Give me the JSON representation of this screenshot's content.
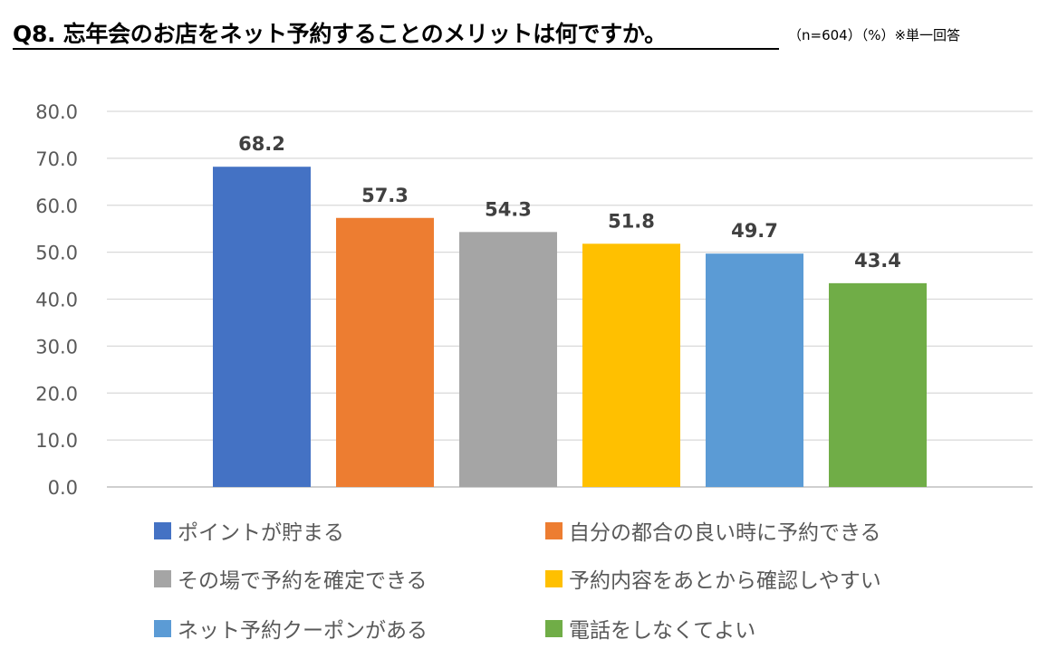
{
  "header": {
    "title": "Q8. 忘年会のお店をネット予約することのメリットは何ですか。",
    "note": "（n=604）（%）※単一回答"
  },
  "chart_data": {
    "type": "bar",
    "title": "Q8. 忘年会のお店をネット予約することのメリットは何ですか。",
    "xlabel": "",
    "ylabel": "",
    "ylim": [
      0,
      80
    ],
    "yticks": [
      "0.0",
      "10.0",
      "20.0",
      "30.0",
      "40.0",
      "50.0",
      "60.0",
      "70.0",
      "80.0"
    ],
    "grid": true,
    "legend_position": "bottom",
    "categories": [
      "ポイントが貯まる",
      "自分の都合の良い時に予約できる",
      "その場で予約を確定できる",
      "予約内容をあとから確認しやすい",
      "ネット予約クーポンがある",
      "電話をしなくてよい"
    ],
    "values": [
      68.2,
      57.3,
      54.3,
      51.8,
      49.7,
      43.4
    ],
    "value_labels": [
      "68.2",
      "57.3",
      "54.3",
      "51.8",
      "49.7",
      "43.4"
    ],
    "colors": [
      "#4472C4",
      "#ED7D31",
      "#A5A5A5",
      "#FFC000",
      "#5B9BD5",
      "#70AD47"
    ]
  }
}
